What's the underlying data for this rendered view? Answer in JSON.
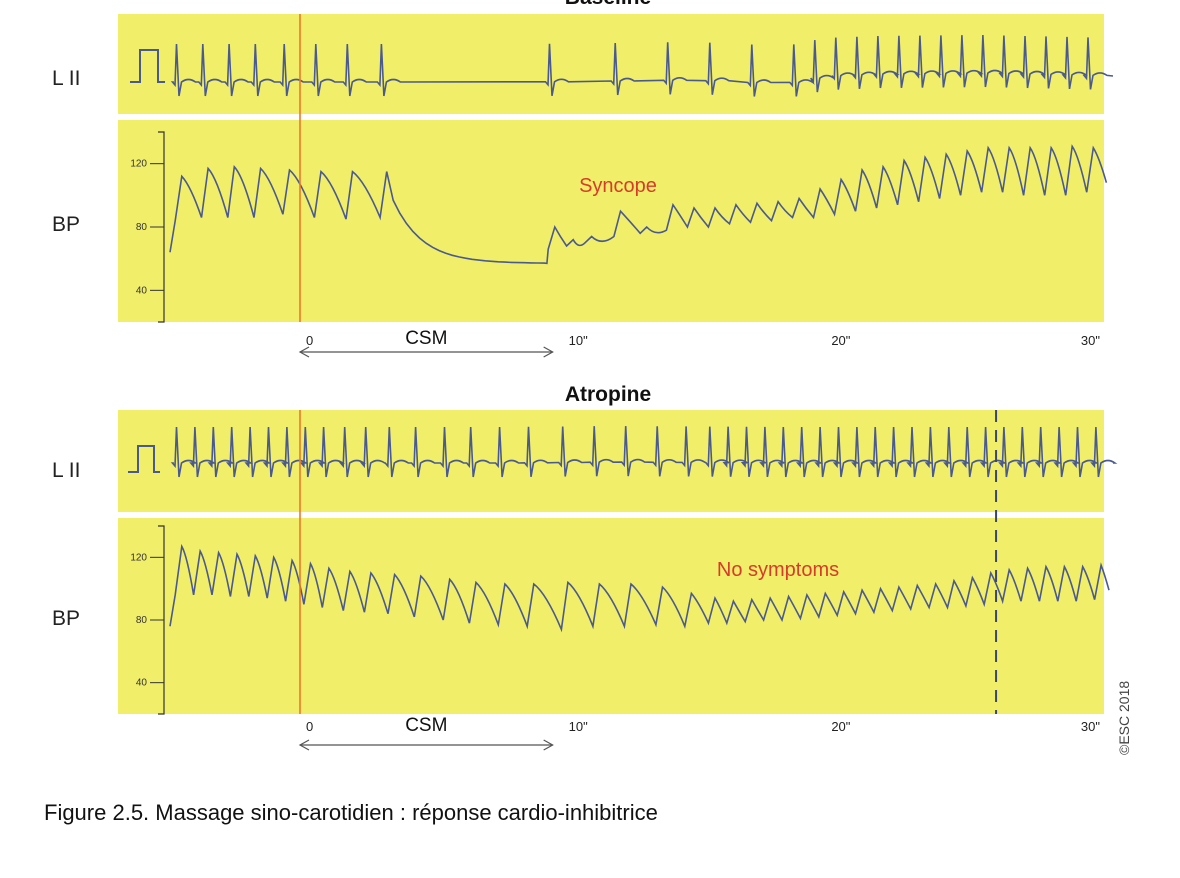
{
  "figure": {
    "caption": "Figure 2.5. Massage sino-carotidien : réponse cardio-inhibitrice",
    "copyright": "©ESC 2018",
    "colors": {
      "panel_bg": "#f1ee6a",
      "trace": "#4a5a8f",
      "marker": "#f07828",
      "annotation": "#d63c2a"
    }
  },
  "chart_data": [
    {
      "type": "line",
      "title": "Baseline",
      "ecg_label": "L II",
      "bp_label": "BP",
      "annotation": "Syncope",
      "intervention_label": "CSM",
      "intervention_range_s": [
        0,
        10
      ],
      "x_unit": "s",
      "xlim": [
        -5,
        31
      ],
      "x_ticks": [
        {
          "v": 0,
          "label": "0"
        },
        {
          "v": 10,
          "label": "10\""
        },
        {
          "v": 20,
          "label": "20\""
        },
        {
          "v": 30,
          "label": "30\""
        }
      ],
      "ylim": [
        20,
        140
      ],
      "y_ticks": [
        {
          "v": 120,
          "label": "120"
        },
        {
          "v": 80,
          "label": "80"
        },
        {
          "v": 40,
          "label": "40"
        }
      ],
      "bp_beats": [
        {
          "t": -4.7,
          "peak": 112,
          "trough": 84
        },
        {
          "t": -3.7,
          "peak": 117,
          "trough": 86
        },
        {
          "t": -2.7,
          "peak": 118,
          "trough": 86
        },
        {
          "t": -1.7,
          "peak": 117,
          "trough": 86
        },
        {
          "t": -0.6,
          "peak": 116,
          "trough": 88
        },
        {
          "t": 0.6,
          "peak": 115,
          "trough": 86
        },
        {
          "t": 1.8,
          "peak": 115,
          "trough": 85
        },
        {
          "t": 3.1,
          "peak": 115,
          "trough": 86
        },
        {
          "t": 9.5,
          "peak": 80,
          "trough": 66
        },
        {
          "t": 10.2,
          "peak": 72,
          "trough": 68
        },
        {
          "t": 10.9,
          "peak": 74,
          "trough": 70
        },
        {
          "t": 12.0,
          "peak": 90,
          "trough": 74
        },
        {
          "t": 13.0,
          "peak": 80,
          "trough": 76
        },
        {
          "t": 14.0,
          "peak": 94,
          "trough": 78
        },
        {
          "t": 14.8,
          "peak": 92,
          "trough": 80
        },
        {
          "t": 15.6,
          "peak": 92,
          "trough": 80
        },
        {
          "t": 16.4,
          "peak": 94,
          "trough": 82
        },
        {
          "t": 17.2,
          "peak": 95,
          "trough": 83
        },
        {
          "t": 18.0,
          "peak": 96,
          "trough": 84
        },
        {
          "t": 18.8,
          "peak": 98,
          "trough": 86
        },
        {
          "t": 19.6,
          "peak": 104,
          "trough": 86
        },
        {
          "t": 20.4,
          "peak": 110,
          "trough": 88
        },
        {
          "t": 21.2,
          "peak": 116,
          "trough": 90
        },
        {
          "t": 22.0,
          "peak": 118,
          "trough": 92
        },
        {
          "t": 22.8,
          "peak": 122,
          "trough": 94
        },
        {
          "t": 23.6,
          "peak": 124,
          "trough": 96
        },
        {
          "t": 24.4,
          "peak": 126,
          "trough": 98
        },
        {
          "t": 25.2,
          "peak": 128,
          "trough": 100
        },
        {
          "t": 26.0,
          "peak": 130,
          "trough": 102
        },
        {
          "t": 26.8,
          "peak": 130,
          "trough": 102
        },
        {
          "t": 27.6,
          "peak": 130,
          "trough": 100
        },
        {
          "t": 28.4,
          "peak": 130,
          "trough": 100
        },
        {
          "t": 29.2,
          "peak": 131,
          "trough": 100
        },
        {
          "t": 30.0,
          "peak": 130,
          "trough": 102
        }
      ],
      "bp_floor": 57,
      "ecg_beats_s": [
        -4.7,
        -3.7,
        -2.7,
        -1.7,
        -0.6,
        0.6,
        1.8,
        3.1,
        9.5,
        12.0,
        14.0,
        15.6,
        17.2,
        18.8,
        19.6,
        20.4,
        21.2,
        22.0,
        22.8,
        23.6,
        24.4,
        25.2,
        26.0,
        26.8,
        27.6,
        28.4,
        29.2,
        30.0
      ],
      "ecg_wander": [
        {
          "t": -5,
          "v": 0
        },
        {
          "t": 3.2,
          "v": 0
        },
        {
          "t": 3.6,
          "v": 2
        },
        {
          "t": 6,
          "v": 1
        },
        {
          "t": 9,
          "v": 0
        },
        {
          "t": 15,
          "v": -2
        },
        {
          "t": 18.5,
          "v": 2
        },
        {
          "t": 20,
          "v": -6
        },
        {
          "t": 22,
          "v": -8
        },
        {
          "t": 26,
          "v": -9
        },
        {
          "t": 31,
          "v": -6
        }
      ]
    },
    {
      "type": "line",
      "title": "Atropine",
      "ecg_label": "L II",
      "bp_label": "BP",
      "annotation": "No symptoms",
      "intervention_label": "CSM",
      "intervention_range_s": [
        0,
        10
      ],
      "x_unit": "s",
      "xlim": [
        -5,
        31
      ],
      "x_ticks": [
        {
          "v": 0,
          "label": "0"
        },
        {
          "v": 10,
          "label": "10\""
        },
        {
          "v": 20,
          "label": "20\""
        },
        {
          "v": 30,
          "label": "30\""
        }
      ],
      "ylim": [
        20,
        140
      ],
      "y_ticks": [
        {
          "v": 120,
          "label": "120"
        },
        {
          "v": 80,
          "label": "80"
        },
        {
          "v": 40,
          "label": "40"
        }
      ],
      "event_marker_s": 26.5,
      "bp_beats": [
        {
          "t": -4.7,
          "peak": 127,
          "trough": 96
        },
        {
          "t": -4.0,
          "peak": 124,
          "trough": 96
        },
        {
          "t": -3.3,
          "peak": 123,
          "trough": 96
        },
        {
          "t": -2.6,
          "peak": 122,
          "trough": 95
        },
        {
          "t": -1.9,
          "peak": 121,
          "trough": 95
        },
        {
          "t": -1.2,
          "peak": 120,
          "trough": 94
        },
        {
          "t": -0.5,
          "peak": 118,
          "trough": 92
        },
        {
          "t": 0.2,
          "peak": 116,
          "trough": 90
        },
        {
          "t": 0.9,
          "peak": 113,
          "trough": 88
        },
        {
          "t": 1.7,
          "peak": 111,
          "trough": 86
        },
        {
          "t": 2.5,
          "peak": 110,
          "trough": 85
        },
        {
          "t": 3.4,
          "peak": 109,
          "trough": 84
        },
        {
          "t": 4.4,
          "peak": 108,
          "trough": 82
        },
        {
          "t": 5.5,
          "peak": 106,
          "trough": 80
        },
        {
          "t": 6.5,
          "peak": 104,
          "trough": 78
        },
        {
          "t": 7.6,
          "peak": 103,
          "trough": 77
        },
        {
          "t": 8.7,
          "peak": 103,
          "trough": 76
        },
        {
          "t": 10.0,
          "peak": 104,
          "trough": 74
        },
        {
          "t": 11.2,
          "peak": 103,
          "trough": 76
        },
        {
          "t": 12.4,
          "peak": 103,
          "trough": 76
        },
        {
          "t": 13.6,
          "peak": 101,
          "trough": 77
        },
        {
          "t": 14.7,
          "peak": 97,
          "trough": 76
        },
        {
          "t": 15.6,
          "peak": 94,
          "trough": 78
        },
        {
          "t": 16.3,
          "peak": 92,
          "trough": 78
        },
        {
          "t": 17.0,
          "peak": 93,
          "trough": 79
        },
        {
          "t": 17.7,
          "peak": 94,
          "trough": 80
        },
        {
          "t": 18.4,
          "peak": 95,
          "trough": 80
        },
        {
          "t": 19.1,
          "peak": 96,
          "trough": 81
        },
        {
          "t": 19.8,
          "peak": 97,
          "trough": 82
        },
        {
          "t": 20.5,
          "peak": 98,
          "trough": 83
        },
        {
          "t": 21.2,
          "peak": 99,
          "trough": 84
        },
        {
          "t": 21.9,
          "peak": 100,
          "trough": 85
        },
        {
          "t": 22.6,
          "peak": 101,
          "trough": 86
        },
        {
          "t": 23.3,
          "peak": 102,
          "trough": 87
        },
        {
          "t": 24.0,
          "peak": 103,
          "trough": 88
        },
        {
          "t": 24.7,
          "peak": 105,
          "trough": 88
        },
        {
          "t": 25.4,
          "peak": 107,
          "trough": 89
        },
        {
          "t": 26.1,
          "peak": 110,
          "trough": 90
        },
        {
          "t": 26.8,
          "peak": 112,
          "trough": 92
        },
        {
          "t": 27.5,
          "peak": 113,
          "trough": 92
        },
        {
          "t": 28.2,
          "peak": 114,
          "trough": 92
        },
        {
          "t": 28.9,
          "peak": 114,
          "trough": 92
        },
        {
          "t": 29.6,
          "peak": 114,
          "trough": 92
        },
        {
          "t": 30.3,
          "peak": 115,
          "trough": 93
        }
      ],
      "ecg_beats_s": [
        -4.7,
        -4.0,
        -3.3,
        -2.6,
        -1.9,
        -1.2,
        -0.5,
        0.2,
        0.9,
        1.7,
        2.5,
        3.4,
        4.4,
        5.5,
        6.5,
        7.6,
        8.7,
        10.0,
        11.2,
        12.4,
        13.6,
        14.7,
        15.6,
        16.3,
        17.0,
        17.7,
        18.4,
        19.1,
        19.8,
        20.5,
        21.2,
        21.9,
        22.6,
        23.3,
        24.0,
        24.7,
        25.4,
        26.1,
        26.8,
        27.5,
        28.2,
        28.9,
        29.6,
        30.3
      ],
      "ecg_wander": [
        {
          "t": -5,
          "v": 0
        },
        {
          "t": 8,
          "v": 0
        },
        {
          "t": 12,
          "v": -1
        },
        {
          "t": 18,
          "v": 0
        },
        {
          "t": 31,
          "v": 0
        }
      ]
    }
  ]
}
